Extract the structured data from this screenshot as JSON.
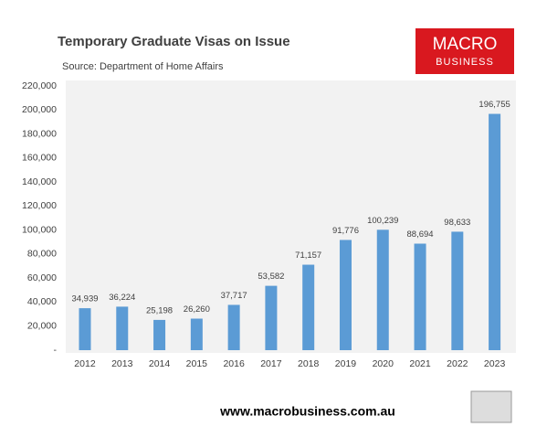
{
  "chart_data": {
    "type": "bar",
    "title": "Temporary Graduate Visas on Issue",
    "subtitle": "Source: Department of Home Affairs",
    "logo": [
      "MACRO",
      "BUSINESS"
    ],
    "footer": "www.macrobusiness.com.au",
    "categories": [
      "2012",
      "2013",
      "2014",
      "2015",
      "2016",
      "2017",
      "2018",
      "2019",
      "2020",
      "2021",
      "2022",
      "2023"
    ],
    "values": [
      34939,
      36224,
      25198,
      26260,
      37717,
      53582,
      71157,
      91776,
      100239,
      88694,
      98633,
      196755
    ],
    "value_labels": [
      "34,939",
      "36,224",
      "25,198",
      "26,260",
      "37,717",
      "53,582",
      "71,157",
      "91,776",
      "100,239",
      "88,694",
      "98,633",
      "196,755"
    ],
    "color": "#5b9bd5",
    "ylim": [
      0,
      220000
    ],
    "yticks": [
      {
        "value": 0,
        "label": "-"
      },
      {
        "value": 20000,
        "label": "20,000"
      },
      {
        "value": 40000,
        "label": "40,000"
      },
      {
        "value": 60000,
        "label": "60,000"
      },
      {
        "value": 80000,
        "label": "80,000"
      },
      {
        "value": 100000,
        "label": "100,000"
      },
      {
        "value": 120000,
        "label": "120,000"
      },
      {
        "value": 140000,
        "label": "140,000"
      },
      {
        "value": 160000,
        "label": "160,000"
      },
      {
        "value": 180000,
        "label": "180,000"
      },
      {
        "value": 200000,
        "label": "200,000"
      },
      {
        "value": 220000,
        "label": "220,000"
      }
    ],
    "grid": false
  }
}
